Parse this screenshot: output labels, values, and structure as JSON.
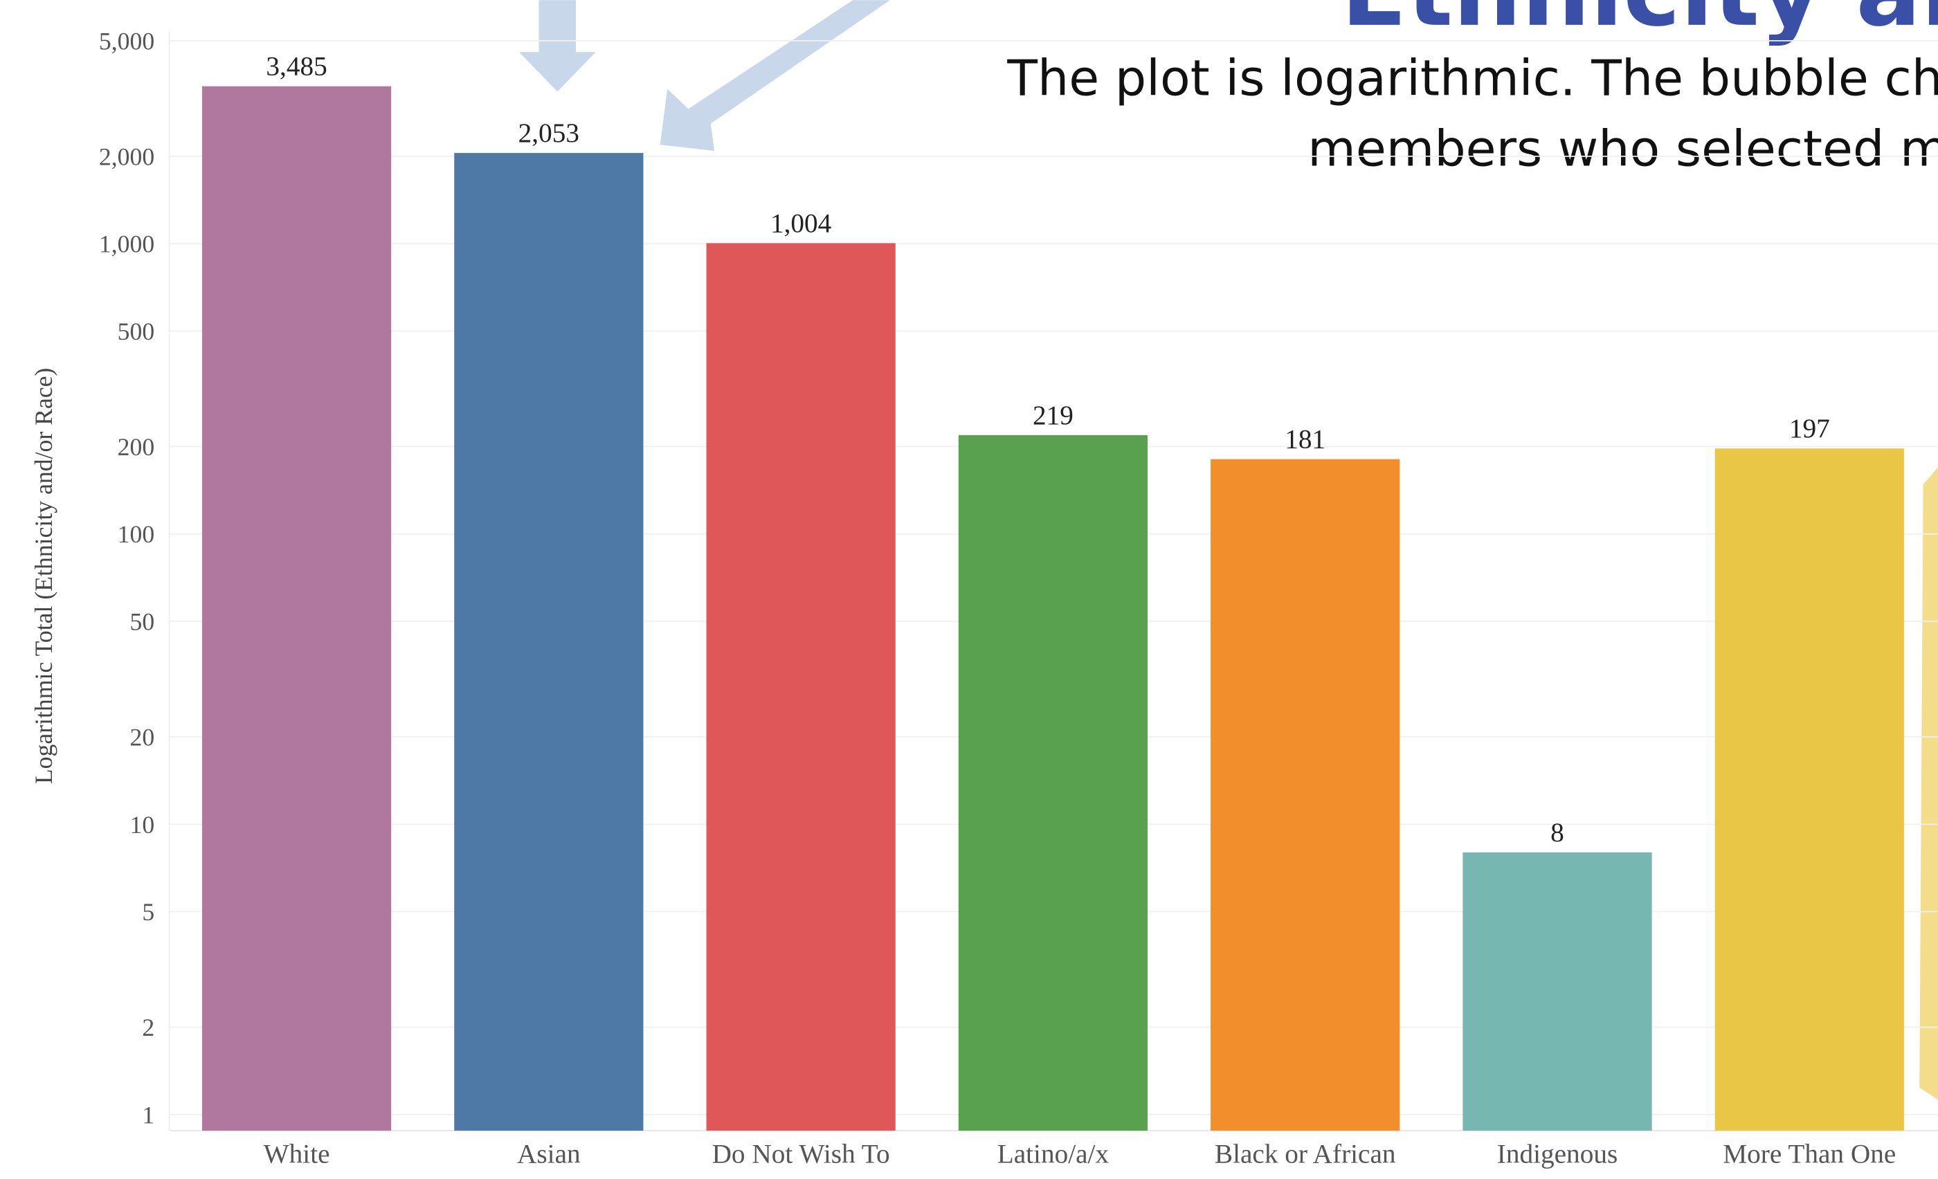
{
  "chart_data": {
    "type": "bar",
    "title": "Ethnicity and",
    "annotation": [
      "The plot is logarithmic. The bubble char",
      "members who selected mo"
    ],
    "y_label": "Logarithmic Total (Ethnicity and/or Race)",
    "categories": [
      "White",
      "Asian",
      "Do Not Wish To",
      "Latino/a/x",
      "Black or African",
      "Indigenous",
      "More Than One"
    ],
    "values": [
      3485,
      2053,
      1004,
      219,
      181,
      8,
      197
    ],
    "value_labels": [
      "3,485",
      "2,053",
      "1,004",
      "219",
      "181",
      "8",
      "197"
    ],
    "colors": [
      "#b0779f",
      "#4e79a7",
      "#e05759",
      "#59a14f",
      "#f28e2b",
      "#76b7b2",
      "#e9c646"
    ],
    "log_scale": true,
    "ylim": [
      0.88,
      5400
    ],
    "yticks": [
      1,
      2,
      5,
      10,
      20,
      50,
      100,
      200,
      500,
      {
        "value": 1000,
        "label": "1,000"
      },
      {
        "value": 2000,
        "label": "2,000"
      },
      {
        "value": 5000,
        "label": "5,000"
      }
    ],
    "grid": true
  }
}
